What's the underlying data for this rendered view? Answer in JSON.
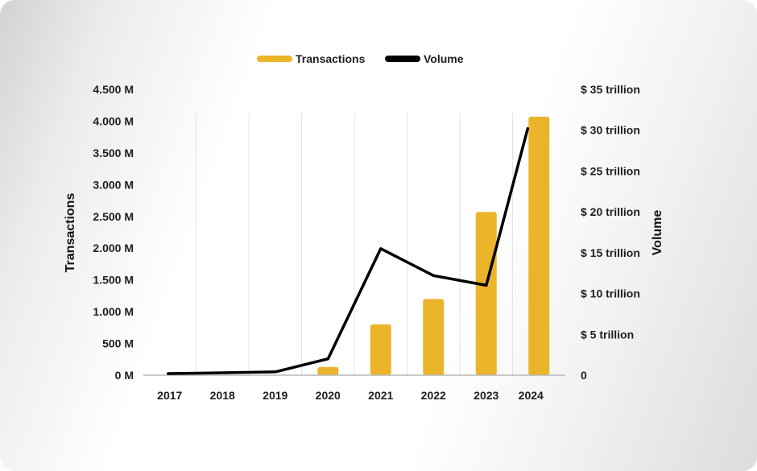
{
  "chart_data": {
    "type": "bar+line",
    "categories": [
      "2017",
      "2018",
      "2019",
      "2020",
      "2021",
      "2022",
      "2023",
      "2024"
    ],
    "series": [
      {
        "name": "Transactions",
        "type": "bar",
        "axis": "left",
        "values": [
          0,
          0,
          0,
          130,
          800,
          1200,
          2570,
          4070
        ],
        "color": "#ebb42a"
      },
      {
        "name": "Volume",
        "type": "line",
        "axis": "right",
        "values": [
          0.2,
          0.3,
          0.4,
          2.0,
          15.5,
          12.2,
          11.0,
          30.2
        ],
        "color": "#000000"
      }
    ],
    "left_axis": {
      "title": "Transactions",
      "range": [
        0,
        4500
      ],
      "ticks": [
        {
          "value": 0,
          "label": "0 M"
        },
        {
          "value": 500,
          "label": "500 M"
        },
        {
          "value": 1000,
          "label": "1.000 M"
        },
        {
          "value": 1500,
          "label": "1.500 M"
        },
        {
          "value": 2000,
          "label": "2.000 M"
        },
        {
          "value": 2500,
          "label": "2.500 M"
        },
        {
          "value": 3000,
          "label": "3.000 M"
        },
        {
          "value": 3500,
          "label": "3.500 M"
        },
        {
          "value": 4000,
          "label": "4.000 M"
        },
        {
          "value": 4500,
          "label": "4.500 M"
        }
      ]
    },
    "right_axis": {
      "title": "Volume",
      "range": [
        0,
        35
      ],
      "ticks": [
        {
          "value": 0,
          "label": "0"
        },
        {
          "value": 5,
          "label": "$ 5 trillion"
        },
        {
          "value": 10,
          "label": "$ 10 trillion"
        },
        {
          "value": 15,
          "label": "$ 15 trillion"
        },
        {
          "value": 20,
          "label": "$ 20 trillion"
        },
        {
          "value": 25,
          "label": "$ 25 trillion"
        },
        {
          "value": 30,
          "label": "$ 30 trillion"
        },
        {
          "value": 35,
          "label": "$ 35 trillion"
        }
      ]
    },
    "legend": {
      "position": "top-center",
      "items": [
        {
          "label": "Transactions",
          "color": "#ebb42a"
        },
        {
          "label": "Volume",
          "color": "#000000"
        }
      ]
    },
    "grid": "vertical"
  }
}
